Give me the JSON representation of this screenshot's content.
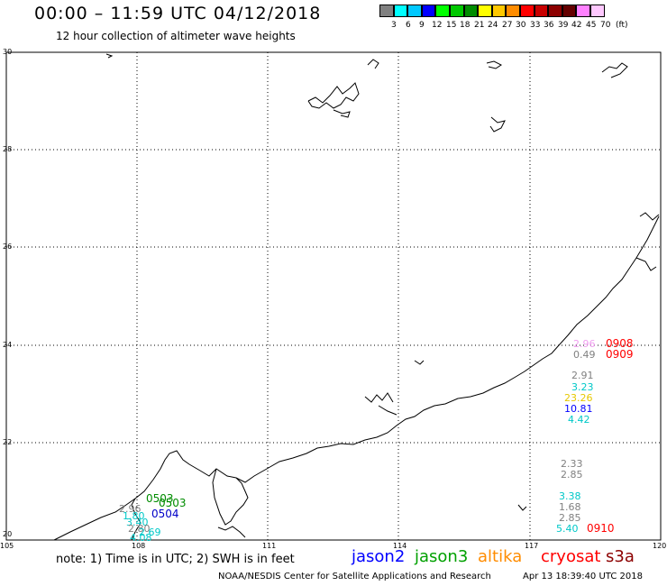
{
  "header": {
    "title": "00:00 – 11:59 UTC 04/12/2018",
    "subtitle": "12 hour collection of altimeter wave heights"
  },
  "legend": {
    "labels": [
      "3",
      "6",
      "9",
      "12",
      "15",
      "18",
      "21",
      "24",
      "27",
      "30",
      "33",
      "36",
      "39",
      "42",
      "45",
      "70"
    ],
    "unit": "(ft)",
    "colors": [
      "#808080",
      "#00ffff",
      "#00c8ff",
      "#0000ff",
      "#00ff00",
      "#00c800",
      "#008c00",
      "#ffff00",
      "#ffc800",
      "#ff8c00",
      "#ff0000",
      "#c80000",
      "#8c0000",
      "#640000",
      "#ff80ff",
      "#ffc8ff"
    ]
  },
  "axes": {
    "lat_labels": [
      "30",
      "28",
      "26",
      "24",
      "22",
      "20"
    ],
    "lon_labels": [
      "105",
      "108",
      "111",
      "114",
      "117",
      "120"
    ]
  },
  "observations": [
    {
      "text": "2.96",
      "color": "#f09ef0"
    },
    {
      "text": "0.49",
      "color": "#808080"
    },
    {
      "text": "0908",
      "color": "#ff0000"
    },
    {
      "text": "0909",
      "color": "#ff0000"
    },
    {
      "text": "2.91",
      "color": "#808080"
    },
    {
      "text": "3.23",
      "color": "#00c8c8"
    },
    {
      "text": "23.26",
      "color": "#e6c800"
    },
    {
      "text": "10.81",
      "color": "#0000ff"
    },
    {
      "text": "4.42",
      "color": "#00c8c8"
    },
    {
      "text": "2.33",
      "color": "#808080"
    },
    {
      "text": "2.85",
      "color": "#808080"
    },
    {
      "text": "3.38",
      "color": "#00c8c8"
    },
    {
      "text": "1.68",
      "color": "#808080"
    },
    {
      "text": "2.85",
      "color": "#808080"
    },
    {
      "text": "5.40",
      "color": "#00c8c8"
    },
    {
      "text": "0910",
      "color": "#ff0000"
    },
    {
      "text": "0503",
      "color": "#008c00"
    },
    {
      "text": "0503",
      "color": "#008c00"
    },
    {
      "text": "0504",
      "color": "#0000c8"
    },
    {
      "text": "2.96",
      "color": "#808080"
    },
    {
      "text": "1.80",
      "color": "#00c8c8"
    },
    {
      "text": "3.40",
      "color": "#00c8c8"
    },
    {
      "text": "2.80",
      "color": "#808080"
    },
    {
      "text": "2.69",
      "color": "#00c8c8"
    },
    {
      "text": "4.08",
      "color": "#00c8c8"
    }
  ],
  "footer": {
    "note": "note: 1) Time is in UTC; 2) SWH is in feet",
    "satellites": [
      {
        "name": "jason2",
        "color": "#0000ff"
      },
      {
        "name": "jason3",
        "color": "#00a000"
      },
      {
        "name": "altika",
        "color": "#ff8c00"
      },
      {
        "name": "cryosat",
        "color": "#ff0000"
      },
      {
        "name": "s3a",
        "color": "#8c0000"
      }
    ],
    "credit": "NOAA/NESDIS Center for Satellite Applications and Research",
    "timestamp": "Apr 13 18:39:40 UTC 2018"
  }
}
